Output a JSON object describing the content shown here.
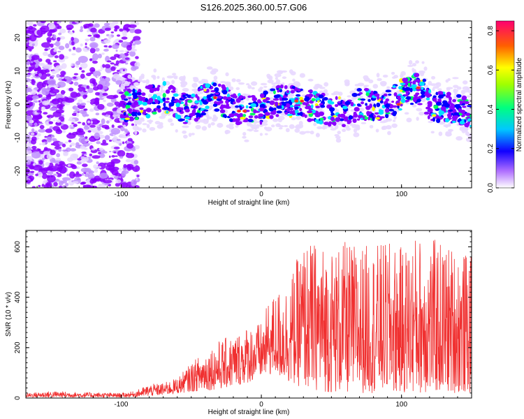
{
  "title": "S126.2025.360.00.57.G06",
  "chart_data": [
    {
      "type": "heatmap",
      "name": "spectrogram",
      "xlabel": "Height of straight line (km)",
      "ylabel": "Frequency (Hz)",
      "xlim": [
        -168,
        150
      ],
      "ylim": [
        -25,
        25
      ],
      "xticks": [
        -100,
        0,
        100
      ],
      "yticks": [
        -20,
        -10,
        0,
        10,
        20
      ],
      "xtick_labels": [
        "-100",
        "0",
        "100"
      ],
      "ytick_labels": [
        "-20",
        "-10",
        "0",
        "10",
        "20"
      ],
      "colorbar": {
        "label": "Normalized spectral amplitude",
        "range": [
          0.0,
          0.85
        ],
        "ticks": [
          0.0,
          0.2,
          0.4,
          0.6,
          0.8
        ],
        "tick_labels": [
          "0.0",
          "0.2",
          "0.4",
          "0.6",
          "0.8"
        ],
        "colors": [
          "#e8d8ff",
          "#8a00ff",
          "#0000ff",
          "#00e0ff",
          "#00ff60",
          "#ffff00",
          "#ff6000",
          "#ff0050"
        ]
      },
      "ridge_center_hz": [
        [
          -100,
          -1
        ],
        [
          -90,
          0
        ],
        [
          -80,
          1
        ],
        [
          -70,
          2
        ],
        [
          -60,
          0
        ],
        [
          -50,
          -2
        ],
        [
          -40,
          2
        ],
        [
          -30,
          2
        ],
        [
          -20,
          -1
        ],
        [
          -10,
          -2
        ],
        [
          0,
          -1
        ],
        [
          10,
          1
        ],
        [
          20,
          1
        ],
        [
          30,
          0
        ],
        [
          40,
          -1
        ],
        [
          50,
          -2
        ],
        [
          60,
          -2
        ],
        [
          70,
          0
        ],
        [
          80,
          0
        ],
        [
          90,
          0
        ],
        [
          100,
          3
        ],
        [
          110,
          5
        ],
        [
          115,
          4
        ],
        [
          120,
          0
        ],
        [
          130,
          -1
        ],
        [
          140,
          -1
        ],
        [
          150,
          -3
        ]
      ]
    },
    {
      "type": "line",
      "name": "snr",
      "xlabel": "Height of straight line (km)",
      "ylabel": "SNR (10 * v/v)",
      "xlim": [
        -168,
        150
      ],
      "ylim": [
        0,
        665
      ],
      "xticks": [
        -100,
        0,
        100
      ],
      "yticks": [
        0,
        200,
        400,
        600
      ],
      "xtick_labels": [
        "-100",
        "0",
        "100"
      ],
      "ytick_labels": [
        "0",
        "200",
        "400",
        "600"
      ],
      "color": "#f03030",
      "envelope": {
        "x": [
          -168,
          -150,
          -120,
          -100,
          -90,
          -80,
          -70,
          -60,
          -50,
          -40,
          -30,
          -20,
          -10,
          0,
          5,
          10,
          20,
          30,
          40,
          50,
          60,
          70,
          80,
          90,
          100,
          110,
          120,
          130,
          140,
          150
        ],
        "max": [
          20,
          28,
          22,
          20,
          28,
          55,
          60,
          80,
          140,
          190,
          230,
          250,
          290,
          300,
          380,
          420,
          470,
          620,
          620,
          600,
          620,
          610,
          610,
          620,
          600,
          650,
          640,
          620,
          600,
          560
        ],
        "min": [
          3,
          3,
          3,
          3,
          5,
          8,
          12,
          18,
          25,
          30,
          35,
          45,
          60,
          80,
          90,
          90,
          60,
          40,
          30,
          20,
          20,
          20,
          20,
          20,
          20,
          20,
          20,
          20,
          20,
          20
        ]
      }
    }
  ]
}
